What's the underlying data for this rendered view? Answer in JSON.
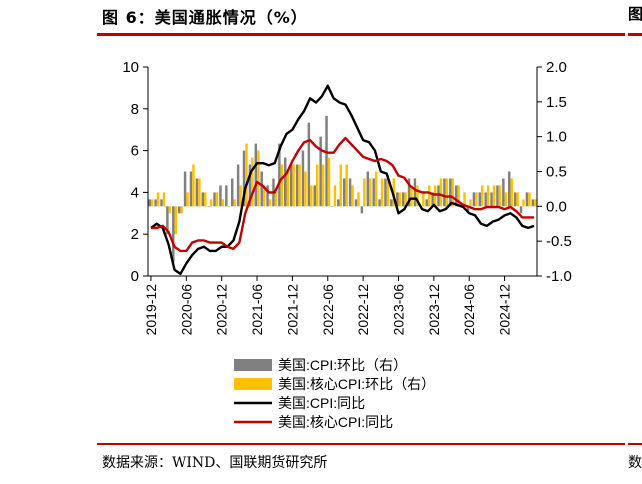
{
  "figure": {
    "title": "图 6：美国通胀情况（%）",
    "source": "数据来源：WIND、国联期货研究所",
    "next_panel_glyph_top": "图",
    "next_panel_glyph_bottom": "数"
  },
  "chart_data": {
    "type": "bar+line",
    "title": "美国通胀情况（%）",
    "x": [
      "2019-12",
      "2020-01",
      "2020-02",
      "2020-03",
      "2020-04",
      "2020-05",
      "2020-06",
      "2020-07",
      "2020-08",
      "2020-09",
      "2020-10",
      "2020-11",
      "2020-12",
      "2021-01",
      "2021-02",
      "2021-03",
      "2021-04",
      "2021-05",
      "2021-06",
      "2021-07",
      "2021-08",
      "2021-09",
      "2021-10",
      "2021-11",
      "2021-12",
      "2022-01",
      "2022-02",
      "2022-03",
      "2022-04",
      "2022-05",
      "2022-06",
      "2022-07",
      "2022-08",
      "2022-09",
      "2022-10",
      "2022-11",
      "2022-12",
      "2023-01",
      "2023-02",
      "2023-03",
      "2023-04",
      "2023-05",
      "2023-06",
      "2023-07",
      "2023-08",
      "2023-09",
      "2023-10",
      "2023-11",
      "2023-12",
      "2024-01",
      "2024-02",
      "2024-03",
      "2024-04",
      "2024-05",
      "2024-06",
      "2024-07",
      "2024-08",
      "2024-09",
      "2024-10",
      "2024-11",
      "2024-12",
      "2025-01",
      "2025-02",
      "2025-03",
      "2025-04",
      "2025-05"
    ],
    "x_tick_labels": [
      "2019-12",
      "2020-06",
      "2020-12",
      "2021-06",
      "2021-12",
      "2022-06",
      "2022-12",
      "2023-06",
      "2023-12",
      "2024-06",
      "2024-12"
    ],
    "left_axis": {
      "ylim": [
        0,
        10
      ],
      "ticks": [
        "0",
        "2",
        "4",
        "6",
        "8",
        "10"
      ]
    },
    "right_axis": {
      "ylim": [
        -1.0,
        2.0
      ],
      "ticks": [
        "-1.0",
        "-0.5",
        "0.0",
        "0.5",
        "1.0",
        "1.5",
        "2.0"
      ]
    },
    "series": [
      {
        "name": "美国:CPI:环比（右）",
        "kind": "bar",
        "axis": "right",
        "color": "#808080",
        "values": [
          0.1,
          0.1,
          0.1,
          -0.4,
          -0.8,
          -0.1,
          0.5,
          0.5,
          0.4,
          0.2,
          0.0,
          0.2,
          0.3,
          0.3,
          0.4,
          0.6,
          0.8,
          0.6,
          0.9,
          0.5,
          0.3,
          0.4,
          0.9,
          0.7,
          0.6,
          0.6,
          0.8,
          1.2,
          0.3,
          1.0,
          1.3,
          0.0,
          0.1,
          0.4,
          0.4,
          0.1,
          -0.1,
          0.5,
          0.4,
          0.1,
          0.4,
          0.1,
          0.2,
          0.2,
          0.4,
          0.4,
          0.0,
          0.1,
          0.2,
          0.3,
          0.4,
          0.4,
          0.3,
          0.0,
          -0.1,
          0.2,
          0.2,
          0.2,
          0.2,
          0.3,
          0.4,
          0.5,
          0.2,
          -0.1,
          0.2,
          0.1
        ]
      },
      {
        "name": "美国:核心CPI:环比（右）",
        "kind": "bar",
        "axis": "right",
        "color": "#ffc000",
        "values": [
          0.1,
          0.2,
          0.2,
          -0.1,
          -0.4,
          -0.1,
          0.2,
          0.6,
          0.4,
          0.2,
          0.1,
          0.2,
          0.1,
          0.0,
          0.1,
          0.3,
          0.9,
          0.7,
          0.8,
          0.3,
          0.1,
          0.2,
          0.6,
          0.5,
          0.6,
          0.6,
          0.5,
          0.3,
          0.6,
          0.6,
          0.7,
          0.3,
          0.6,
          0.6,
          0.3,
          0.2,
          0.4,
          0.4,
          0.5,
          0.4,
          0.4,
          0.4,
          0.2,
          0.2,
          0.3,
          0.3,
          0.2,
          0.3,
          0.3,
          0.4,
          0.4,
          0.4,
          0.3,
          0.2,
          0.1,
          0.2,
          0.3,
          0.3,
          0.3,
          0.3,
          0.2,
          0.4,
          0.2,
          0.1,
          0.2,
          0.1
        ]
      },
      {
        "name": "美国:CPI:同比",
        "kind": "line",
        "axis": "left",
        "color": "#000000",
        "values": [
          2.3,
          2.5,
          2.3,
          1.5,
          0.3,
          0.1,
          0.6,
          1.0,
          1.3,
          1.4,
          1.2,
          1.2,
          1.4,
          1.4,
          1.7,
          2.6,
          4.2,
          5.0,
          5.4,
          5.4,
          5.3,
          5.4,
          6.2,
          6.8,
          7.0,
          7.5,
          7.9,
          8.5,
          8.3,
          8.6,
          9.1,
          8.5,
          8.3,
          8.2,
          7.7,
          7.1,
          6.5,
          6.4,
          6.0,
          5.0,
          4.9,
          4.0,
          3.0,
          3.2,
          3.7,
          3.7,
          3.2,
          3.1,
          3.4,
          3.1,
          3.2,
          3.5,
          3.4,
          3.3,
          3.0,
          2.9,
          2.5,
          2.4,
          2.6,
          2.7,
          2.9,
          3.0,
          2.8,
          2.4,
          2.3,
          2.4
        ]
      },
      {
        "name": "美国:核心CPI:同比",
        "kind": "line",
        "axis": "left",
        "color": "#c00000",
        "values": [
          2.3,
          2.3,
          2.4,
          2.1,
          1.4,
          1.2,
          1.2,
          1.6,
          1.7,
          1.7,
          1.6,
          1.6,
          1.6,
          1.4,
          1.3,
          1.6,
          3.0,
          3.8,
          4.5,
          4.3,
          4.0,
          4.0,
          4.6,
          4.9,
          5.5,
          6.0,
          6.4,
          6.5,
          6.2,
          6.0,
          5.9,
          5.9,
          6.3,
          6.6,
          6.3,
          6.0,
          5.7,
          5.6,
          5.5,
          5.6,
          5.5,
          5.3,
          4.8,
          4.7,
          4.3,
          4.1,
          4.0,
          4.0,
          3.9,
          3.9,
          3.8,
          3.8,
          3.6,
          3.4,
          3.3,
          3.2,
          3.2,
          3.3,
          3.3,
          3.3,
          3.2,
          3.3,
          3.1,
          2.8,
          2.8,
          2.8
        ]
      }
    ],
    "legend_position": "bottom"
  }
}
